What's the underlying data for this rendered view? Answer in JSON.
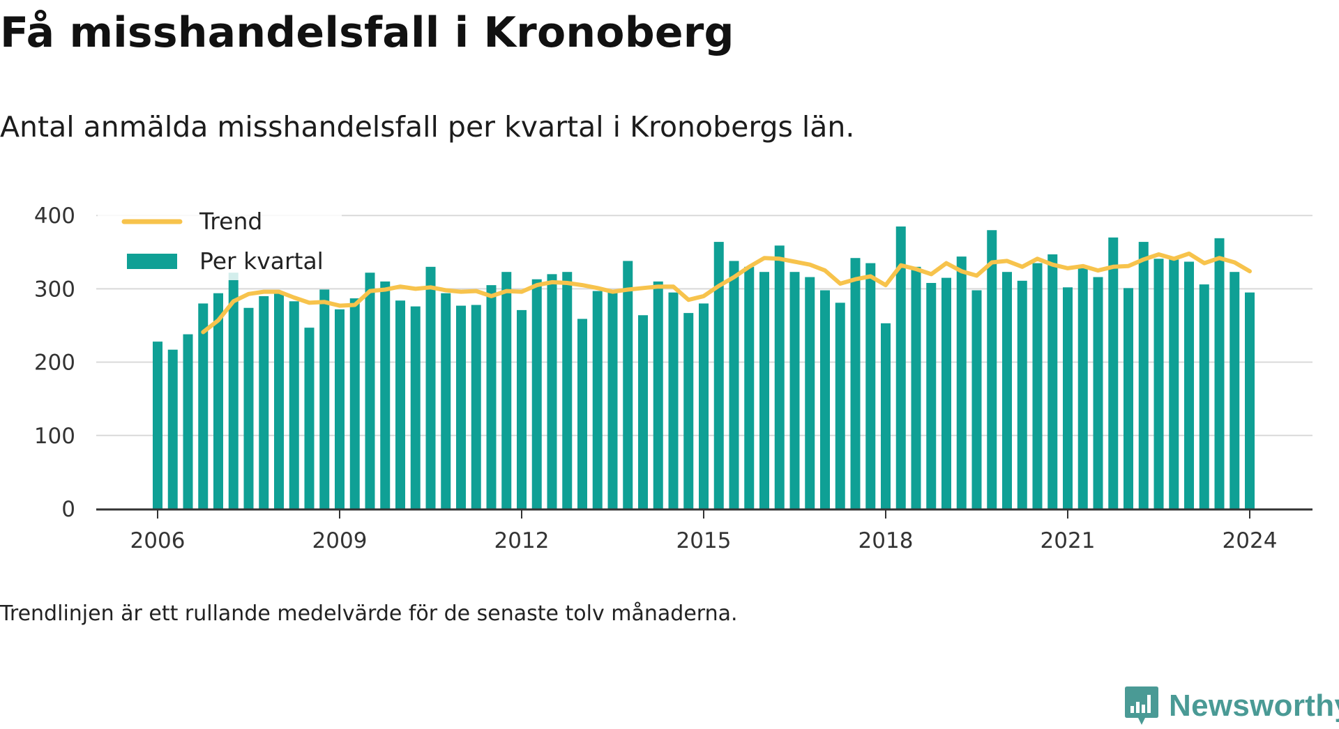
{
  "colors": {
    "bar": "#0fa095",
    "trend": "#f7c34c",
    "grid": "#d9d9d9",
    "axis": "#333333",
    "brand": "#4a9a95"
  },
  "header": {
    "title": "Få misshandelsfall i Kronoberg",
    "subtitle": "Antal anmälda misshandelsfall per kvartal i Kronobergs län."
  },
  "footer": {
    "note": "Trendlinjen är ett rullande medelvärde för de senaste tolv månaderna.",
    "brand": "Newsworthy",
    "brand_icon": "newsworthy-logo-icon"
  },
  "chart_data": {
    "type": "bar",
    "grid": true,
    "legend_position": "top-left",
    "ylim": [
      0,
      400
    ],
    "yticks": [
      0,
      100,
      200,
      300,
      400
    ],
    "xticks": [
      {
        "year": 2006,
        "label": "2006"
      },
      {
        "year": 2009,
        "label": "2009"
      },
      {
        "year": 2012,
        "label": "2012"
      },
      {
        "year": 2015,
        "label": "2015"
      },
      {
        "year": 2018,
        "label": "2018"
      },
      {
        "year": 2021,
        "label": "2021"
      },
      {
        "year": 2024,
        "label": "2024"
      }
    ],
    "x_start": "2006 Q1",
    "series": [
      {
        "name": "Per kvartal",
        "type": "bar",
        "values": [
          228,
          217,
          238,
          280,
          294,
          322,
          274,
          290,
          296,
          283,
          247,
          299,
          272,
          287,
          322,
          310,
          284,
          276,
          330,
          294,
          277,
          278,
          305,
          323,
          271,
          313,
          320,
          323,
          259,
          297,
          296,
          338,
          264,
          310,
          295,
          267,
          280,
          364,
          338,
          330,
          323,
          359,
          323,
          316,
          298,
          281,
          342,
          335,
          253,
          385,
          330,
          308,
          315,
          344,
          298,
          380,
          323,
          311,
          335,
          347,
          302,
          328,
          316,
          370,
          301,
          364,
          341,
          340,
          337,
          306,
          369,
          323,
          295
        ]
      },
      {
        "name": "Trend",
        "type": "line",
        "values": [
          null,
          null,
          null,
          241,
          257,
          283,
          293,
          296,
          296,
          288,
          281,
          282,
          277,
          278,
          297,
          299,
          303,
          300,
          302,
          298,
          296,
          297,
          290,
          297,
          296,
          305,
          309,
          308,
          305,
          301,
          296,
          299,
          301,
          303,
          303,
          285,
          290,
          304,
          316,
          330,
          342,
          341,
          337,
          333,
          325,
          307,
          313,
          317,
          305,
          332,
          327,
          320,
          335,
          324,
          318,
          336,
          338,
          330,
          341,
          333,
          328,
          331,
          325,
          330,
          331,
          340,
          347,
          341,
          348,
          335,
          342,
          336,
          324
        ]
      }
    ]
  }
}
